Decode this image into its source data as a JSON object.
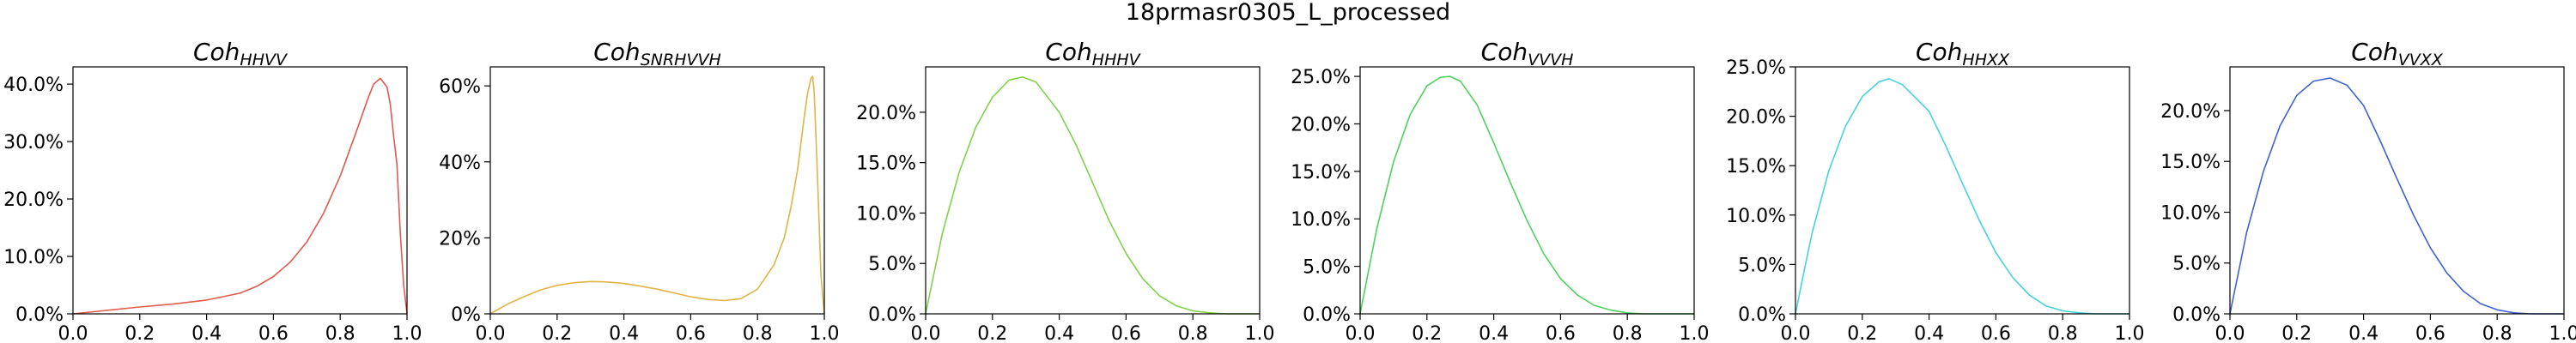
{
  "figure_title": "18prmasr0305_L_processed",
  "chart_data": [
    {
      "type": "line",
      "title": "Coh",
      "title_sub": "HHVV",
      "color": "#e05a4e",
      "xlim": [
        0,
        1
      ],
      "ylim": [
        0,
        43
      ],
      "xticks": [
        0,
        0.2,
        0.4,
        0.6,
        0.8,
        1.0
      ],
      "xtick_labels": [
        "0.0",
        "0.2",
        "0.4",
        "0.6",
        "0.8",
        "1.0"
      ],
      "yticks": [
        0,
        10,
        20,
        30,
        40
      ],
      "ytick_labels": [
        "0.0%",
        "10.0%",
        "20.0%",
        "30.0%",
        "40.0%"
      ],
      "x": [
        0,
        0.1,
        0.2,
        0.3,
        0.4,
        0.5,
        0.55,
        0.6,
        0.65,
        0.7,
        0.75,
        0.8,
        0.85,
        0.88,
        0.9,
        0.92,
        0.94,
        0.95,
        0.96,
        0.97,
        0.98,
        0.99,
        1.0
      ],
      "y": [
        0,
        0.6,
        1.2,
        1.7,
        2.4,
        3.6,
        4.8,
        6.5,
        9.0,
        12.5,
        17.5,
        24.0,
        32.0,
        37.0,
        40.0,
        41.0,
        39.5,
        36.5,
        31.0,
        26.0,
        14.0,
        5.0,
        0
      ]
    },
    {
      "type": "line",
      "title": "Coh",
      "title_sub": "SNRHVVH",
      "color": "#e0b445",
      "xlim": [
        0,
        1
      ],
      "ylim": [
        0,
        65
      ],
      "xticks": [
        0,
        0.2,
        0.4,
        0.6,
        0.8,
        1.0
      ],
      "xtick_labels": [
        "0.0",
        "0.2",
        "0.4",
        "0.6",
        "0.8",
        "1.0"
      ],
      "yticks": [
        0,
        20,
        40,
        60
      ],
      "ytick_labels": [
        "0%",
        "20%",
        "40%",
        "60%"
      ],
      "x": [
        0,
        0.05,
        0.1,
        0.15,
        0.2,
        0.25,
        0.3,
        0.35,
        0.4,
        0.45,
        0.5,
        0.55,
        0.6,
        0.65,
        0.7,
        0.75,
        0.8,
        0.85,
        0.88,
        0.9,
        0.92,
        0.94,
        0.95,
        0.96,
        0.965,
        0.97,
        0.98,
        0.99,
        1.0
      ],
      "y": [
        0,
        2.5,
        4.5,
        6.3,
        7.5,
        8.2,
        8.5,
        8.4,
        8.0,
        7.3,
        6.5,
        5.5,
        4.5,
        3.8,
        3.5,
        4.0,
        6.5,
        13.0,
        20.0,
        28.0,
        38.0,
        52.0,
        58.0,
        62.0,
        62.5,
        58.0,
        35.0,
        10.0,
        0
      ]
    },
    {
      "type": "line",
      "title": "Coh",
      "title_sub": "HHHV",
      "color": "#80d24a",
      "xlim": [
        0,
        1
      ],
      "ylim": [
        0,
        24.5
      ],
      "xticks": [
        0,
        0.2,
        0.4,
        0.6,
        0.8,
        1.0
      ],
      "xtick_labels": [
        "0.0",
        "0.2",
        "0.4",
        "0.6",
        "0.8",
        "1.0"
      ],
      "yticks": [
        0,
        5,
        10,
        15,
        20
      ],
      "ytick_labels": [
        "0.0%",
        "5.0%",
        "10.0%",
        "15.0%",
        "20.0%"
      ],
      "x": [
        0,
        0.025,
        0.05,
        0.1,
        0.15,
        0.2,
        0.25,
        0.29,
        0.33,
        0.4,
        0.45,
        0.5,
        0.55,
        0.6,
        0.65,
        0.7,
        0.75,
        0.8,
        0.85,
        0.9,
        1.0
      ],
      "y": [
        0,
        4.0,
        8.0,
        14.0,
        18.5,
        21.5,
        23.2,
        23.5,
        23.0,
        20.0,
        16.8,
        13.0,
        9.2,
        6.0,
        3.5,
        1.8,
        0.8,
        0.3,
        0.1,
        0,
        0
      ]
    },
    {
      "type": "line",
      "title": "Coh",
      "title_sub": "VVVH",
      "color": "#4fd25d",
      "xlim": [
        0,
        1
      ],
      "ylim": [
        0,
        26
      ],
      "xticks": [
        0,
        0.2,
        0.4,
        0.6,
        0.8,
        1.0
      ],
      "xtick_labels": [
        "0.0",
        "0.2",
        "0.4",
        "0.6",
        "0.8",
        "1.0"
      ],
      "yticks": [
        0,
        5,
        10,
        15,
        20,
        25
      ],
      "ytick_labels": [
        "0.0%",
        "5.0%",
        "10.0%",
        "15.0%",
        "20.0%",
        "25.0%"
      ],
      "x": [
        0,
        0.025,
        0.05,
        0.1,
        0.15,
        0.2,
        0.24,
        0.27,
        0.3,
        0.35,
        0.4,
        0.45,
        0.5,
        0.55,
        0.6,
        0.65,
        0.7,
        0.75,
        0.8,
        0.85,
        1.0
      ],
      "y": [
        0,
        4.5,
        9.0,
        16.0,
        21.0,
        24.0,
        24.9,
        25.0,
        24.5,
        22.0,
        18.0,
        13.8,
        9.8,
        6.3,
        3.7,
        2.0,
        0.9,
        0.4,
        0.1,
        0,
        0
      ]
    },
    {
      "type": "line",
      "title": "Coh",
      "title_sub": "HHXX",
      "color": "#45d3dc",
      "xlim": [
        0,
        1
      ],
      "ylim": [
        0,
        25
      ],
      "xticks": [
        0,
        0.2,
        0.4,
        0.6,
        0.8,
        1.0
      ],
      "xtick_labels": [
        "0.0",
        "0.2",
        "0.4",
        "0.6",
        "0.8",
        "1.0"
      ],
      "yticks": [
        0,
        5,
        10,
        15,
        20,
        25
      ],
      "ytick_labels": [
        "0.0%",
        "5.0%",
        "10.0%",
        "15.0%",
        "20.0%",
        "25.0%"
      ],
      "x": [
        0,
        0.025,
        0.05,
        0.1,
        0.15,
        0.2,
        0.25,
        0.28,
        0.32,
        0.4,
        0.45,
        0.5,
        0.55,
        0.6,
        0.65,
        0.7,
        0.75,
        0.8,
        0.85,
        0.9,
        1.0
      ],
      "y": [
        0,
        4.2,
        8.2,
        14.5,
        19.0,
        22.0,
        23.5,
        23.8,
        23.2,
        20.5,
        17.0,
        13.2,
        9.5,
        6.2,
        3.7,
        1.9,
        0.8,
        0.3,
        0.1,
        0,
        0
      ]
    },
    {
      "type": "line",
      "title": "Coh",
      "title_sub": "VVXX",
      "color": "#3f62cf",
      "xlim": [
        0,
        1
      ],
      "ylim": [
        0,
        24.3
      ],
      "xticks": [
        0,
        0.2,
        0.4,
        0.6,
        0.8,
        1.0
      ],
      "xtick_labels": [
        "0.0",
        "0.2",
        "0.4",
        "0.6",
        "0.8",
        "1.0"
      ],
      "yticks": [
        0,
        5,
        10,
        15,
        20
      ],
      "ytick_labels": [
        "0.0%",
        "5.0%",
        "10.0%",
        "15.0%",
        "20.0%"
      ],
      "x": [
        0,
        0.025,
        0.05,
        0.1,
        0.15,
        0.2,
        0.25,
        0.3,
        0.35,
        0.4,
        0.45,
        0.5,
        0.55,
        0.6,
        0.65,
        0.7,
        0.75,
        0.8,
        0.85,
        0.9,
        1.0
      ],
      "y": [
        0,
        4.0,
        8.0,
        14.0,
        18.5,
        21.5,
        22.9,
        23.2,
        22.5,
        20.5,
        17.0,
        13.3,
        9.7,
        6.5,
        4.0,
        2.2,
        1.0,
        0.4,
        0.1,
        0,
        0
      ]
    }
  ]
}
